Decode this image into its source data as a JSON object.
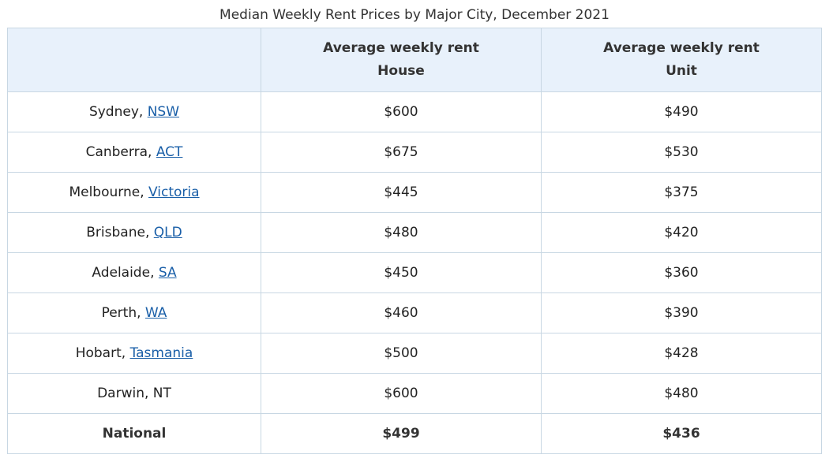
{
  "caption": "Median Weekly Rent Prices by Major City, December 2021",
  "header": {
    "col1": "",
    "col2_line1": "Average weekly rent",
    "col2_line2": "House",
    "col3_line1": "Average weekly rent",
    "col3_line2": "Unit"
  },
  "rows": [
    {
      "city": "Sydney",
      "state": "NSW",
      "state_is_link": true,
      "house": "$600",
      "unit": "$490"
    },
    {
      "city": "Canberra",
      "state": "ACT",
      "state_is_link": true,
      "house": "$675",
      "unit": "$530"
    },
    {
      "city": "Melbourne",
      "state": "Victoria",
      "state_is_link": true,
      "house": "$445",
      "unit": "$375"
    },
    {
      "city": "Brisbane",
      "state": "QLD",
      "state_is_link": true,
      "house": "$480",
      "unit": "$420"
    },
    {
      "city": "Adelaide",
      "state": "SA",
      "state_is_link": true,
      "house": "$450",
      "unit": "$360"
    },
    {
      "city": "Perth",
      "state": "WA",
      "state_is_link": true,
      "house": "$460",
      "unit": "$390"
    },
    {
      "city": "Hobart",
      "state": "Tasmania",
      "state_is_link": true,
      "house": "$500",
      "unit": "$428"
    },
    {
      "city": "Darwin",
      "state": "NT",
      "state_is_link": false,
      "house": "$600",
      "unit": "$480"
    }
  ],
  "total": {
    "label": "National",
    "house": "$499",
    "unit": "$436"
  },
  "colors": {
    "header_bg": "#e8f1fb",
    "border": "#c8d7e3",
    "link": "#1a5fa8"
  }
}
